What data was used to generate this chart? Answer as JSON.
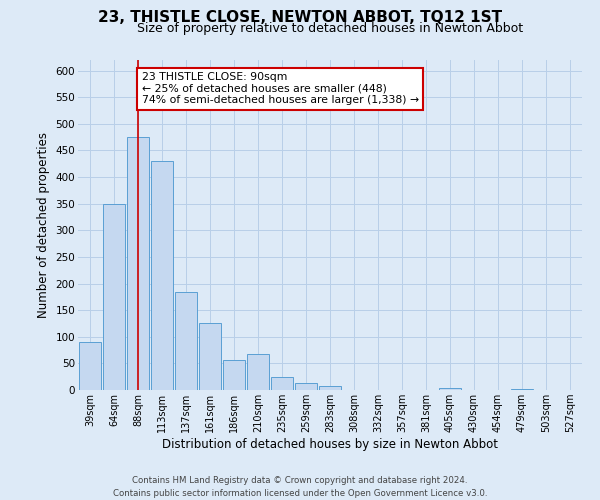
{
  "title": "23, THISTLE CLOSE, NEWTON ABBOT, TQ12 1ST",
  "subtitle": "Size of property relative to detached houses in Newton Abbot",
  "xlabel": "Distribution of detached houses by size in Newton Abbot",
  "ylabel": "Number of detached properties",
  "bar_labels": [
    "39sqm",
    "64sqm",
    "88sqm",
    "113sqm",
    "137sqm",
    "161sqm",
    "186sqm",
    "210sqm",
    "235sqm",
    "259sqm",
    "283sqm",
    "308sqm",
    "332sqm",
    "357sqm",
    "381sqm",
    "405sqm",
    "430sqm",
    "454sqm",
    "479sqm",
    "503sqm",
    "527sqm"
  ],
  "bar_values": [
    90,
    350,
    475,
    430,
    185,
    125,
    57,
    68,
    25,
    13,
    7,
    0,
    0,
    0,
    0,
    3,
    0,
    0,
    2,
    0,
    0
  ],
  "bar_color": "#c5d8f0",
  "bar_edge_color": "#5a9fd4",
  "reference_line_x": 2,
  "ylim": [
    0,
    620
  ],
  "yticks": [
    0,
    50,
    100,
    150,
    200,
    250,
    300,
    350,
    400,
    450,
    500,
    550,
    600
  ],
  "annotation_text": "23 THISTLE CLOSE: 90sqm\n← 25% of detached houses are smaller (448)\n74% of semi-detached houses are larger (1,338) →",
  "annotation_box_color": "#ffffff",
  "annotation_border_color": "#cc0000",
  "footer_line1": "Contains HM Land Registry data © Crown copyright and database right 2024.",
  "footer_line2": "Contains public sector information licensed under the Open Government Licence v3.0.",
  "background_color": "#ddeaf7",
  "plot_bg_color": "#ddeaf7",
  "title_fontsize": 11,
  "subtitle_fontsize": 9
}
